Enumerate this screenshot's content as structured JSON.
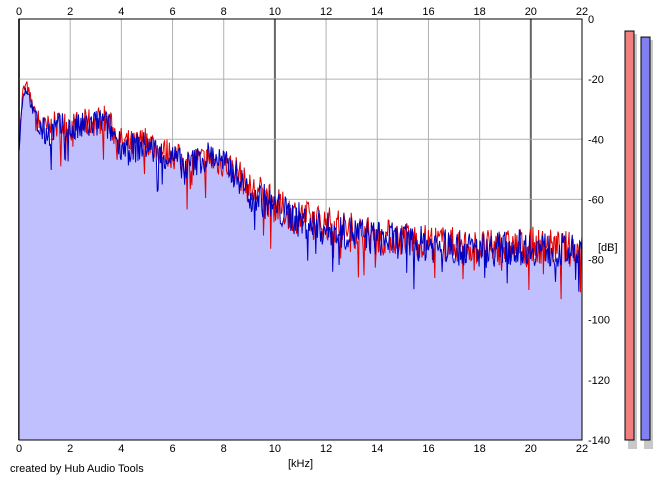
{
  "footer": {
    "credit": "created by Hub Audio Tools"
  },
  "chart_data": {
    "type": "line",
    "xlabel": "[kHz]",
    "ylabel": "[dB]",
    "xlim": [
      0,
      22
    ],
    "ylim": [
      -140,
      0
    ],
    "x_ticks": [
      0,
      2,
      4,
      6,
      8,
      10,
      12,
      14,
      16,
      18,
      20,
      22
    ],
    "y_ticks": [
      0,
      -20,
      -40,
      -60,
      -80,
      -100,
      -120,
      -140
    ],
    "grid": true,
    "colors": {
      "left": "#e00000",
      "right": "#0000c0",
      "fill": "#c0c0ff",
      "left_meter": "#f08080",
      "right_meter": "#8080f0"
    },
    "series": [
      {
        "values": [
          {
            "x": 0.0,
            "y": -42
          },
          {
            "x": 0.15,
            "y": -24
          },
          {
            "x": 0.3,
            "y": -22
          },
          {
            "x": 0.5,
            "y": -28
          },
          {
            "x": 0.7,
            "y": -34
          },
          {
            "x": 1.0,
            "y": -37
          },
          {
            "x": 1.3,
            "y": -36
          },
          {
            "x": 1.6,
            "y": -35
          },
          {
            "x": 2.0,
            "y": -36
          },
          {
            "x": 2.5,
            "y": -35
          },
          {
            "x": 3.0,
            "y": -34
          },
          {
            "x": 3.3,
            "y": -33
          },
          {
            "x": 3.6,
            "y": -36
          },
          {
            "x": 4.0,
            "y": -41
          },
          {
            "x": 4.5,
            "y": -42
          },
          {
            "x": 5.0,
            "y": -40
          },
          {
            "x": 5.5,
            "y": -44
          },
          {
            "x": 6.0,
            "y": -45
          },
          {
            "x": 6.5,
            "y": -48
          },
          {
            "x": 7.0,
            "y": -47
          },
          {
            "x": 7.5,
            "y": -47
          },
          {
            "x": 8.0,
            "y": -48
          },
          {
            "x": 8.5,
            "y": -50
          },
          {
            "x": 9.0,
            "y": -57
          },
          {
            "x": 9.5,
            "y": -58
          },
          {
            "x": 10.0,
            "y": -62
          },
          {
            "x": 11.0,
            "y": -66
          },
          {
            "x": 12.0,
            "y": -68
          },
          {
            "x": 13.0,
            "y": -70
          },
          {
            "x": 14.0,
            "y": -72
          },
          {
            "x": 15.0,
            "y": -73
          },
          {
            "x": 16.0,
            "y": -74
          },
          {
            "x": 17.0,
            "y": -75
          },
          {
            "x": 18.0,
            "y": -76
          },
          {
            "x": 19.0,
            "y": -76
          },
          {
            "x": 20.0,
            "y": -75
          },
          {
            "x": 21.0,
            "y": -76
          },
          {
            "x": 22.0,
            "y": -77
          }
        ]
      },
      {
        "values": [
          {
            "x": 0.0,
            "y": -43
          },
          {
            "x": 0.15,
            "y": -25
          },
          {
            "x": 0.3,
            "y": -23
          },
          {
            "x": 0.5,
            "y": -29
          },
          {
            "x": 0.7,
            "y": -35
          },
          {
            "x": 1.0,
            "y": -38
          },
          {
            "x": 1.3,
            "y": -37
          },
          {
            "x": 1.6,
            "y": -36
          },
          {
            "x": 2.0,
            "y": -37
          },
          {
            "x": 2.5,
            "y": -36
          },
          {
            "x": 3.0,
            "y": -35
          },
          {
            "x": 3.3,
            "y": -34
          },
          {
            "x": 3.6,
            "y": -37
          },
          {
            "x": 4.0,
            "y": -42
          },
          {
            "x": 4.5,
            "y": -43
          },
          {
            "x": 5.0,
            "y": -42
          },
          {
            "x": 5.5,
            "y": -45
          },
          {
            "x": 6.0,
            "y": -46
          },
          {
            "x": 6.5,
            "y": -49
          },
          {
            "x": 7.0,
            "y": -47
          },
          {
            "x": 7.5,
            "y": -45
          },
          {
            "x": 8.0,
            "y": -48
          },
          {
            "x": 8.5,
            "y": -52
          },
          {
            "x": 9.0,
            "y": -58
          },
          {
            "x": 9.5,
            "y": -60
          },
          {
            "x": 10.0,
            "y": -63
          },
          {
            "x": 11.0,
            "y": -67
          },
          {
            "x": 12.0,
            "y": -70
          },
          {
            "x": 13.0,
            "y": -71
          },
          {
            "x": 14.0,
            "y": -73
          },
          {
            "x": 15.0,
            "y": -74
          },
          {
            "x": 16.0,
            "y": -75
          },
          {
            "x": 17.0,
            "y": -76
          },
          {
            "x": 18.0,
            "y": -77
          },
          {
            "x": 19.0,
            "y": -76
          },
          {
            "x": 20.0,
            "y": -76
          },
          {
            "x": 21.0,
            "y": -77
          },
          {
            "x": 22.0,
            "y": -78
          }
        ]
      }
    ],
    "level_meters": [
      {
        "value_db": -4
      },
      {
        "value_db": -6
      }
    ]
  }
}
